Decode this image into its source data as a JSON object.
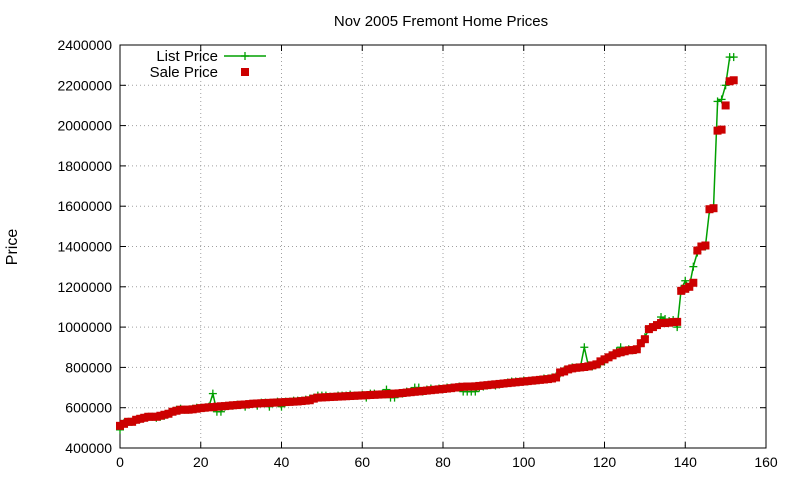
{
  "chart_data": {
    "type": "line",
    "title": "Nov 2005 Fremont Home Prices",
    "xlabel": "",
    "ylabel": "Price",
    "xlim": [
      0,
      160
    ],
    "ylim": [
      400000,
      2400000
    ],
    "xticks": [
      "0",
      "20",
      "40",
      "60",
      "80",
      "100",
      "120",
      "140",
      "160"
    ],
    "yticks": [
      "400000",
      "600000",
      "800000",
      "1000000",
      "1200000",
      "1400000",
      "1600000",
      "1800000",
      "2000000",
      "2200000",
      "2400000"
    ],
    "grid": true,
    "legend_position": "top-left",
    "colors": {
      "list": "#00a000",
      "sale": "#cc0000"
    },
    "series": [
      {
        "name": "List Price",
        "style": "line-plus",
        "x": [
          0,
          1,
          2,
          3,
          4,
          5,
          6,
          7,
          8,
          9,
          10,
          11,
          12,
          13,
          14,
          15,
          16,
          17,
          18,
          19,
          20,
          21,
          22,
          23,
          24,
          25,
          26,
          27,
          28,
          29,
          30,
          31,
          32,
          33,
          34,
          35,
          36,
          37,
          38,
          39,
          40,
          41,
          42,
          43,
          44,
          45,
          46,
          47,
          48,
          49,
          50,
          51,
          52,
          53,
          54,
          55,
          56,
          57,
          58,
          59,
          60,
          61,
          62,
          63,
          64,
          65,
          66,
          67,
          68,
          69,
          70,
          71,
          72,
          73,
          74,
          75,
          76,
          77,
          78,
          79,
          80,
          81,
          82,
          83,
          84,
          85,
          86,
          87,
          88,
          89,
          90,
          91,
          92,
          93,
          94,
          95,
          96,
          97,
          98,
          99,
          100,
          101,
          102,
          103,
          104,
          105,
          106,
          107,
          108,
          109,
          110,
          111,
          112,
          113,
          114,
          115,
          116,
          117,
          118,
          119,
          120,
          121,
          122,
          123,
          124,
          125,
          126,
          127,
          128,
          129,
          130,
          131,
          132,
          133,
          134,
          135,
          136,
          137,
          138,
          139,
          140,
          141,
          142,
          143,
          144,
          145,
          146,
          147,
          148,
          149,
          150,
          151,
          152
        ],
        "values": [
          490000,
          525000,
          530000,
          530000,
          540000,
          545000,
          550000,
          555000,
          555000,
          550000,
          555000,
          560000,
          570000,
          580000,
          590000,
          595000,
          590000,
          590000,
          595000,
          600000,
          600000,
          600000,
          605000,
          670000,
          580000,
          580000,
          605000,
          610000,
          610000,
          615000,
          615000,
          605000,
          615000,
          620000,
          610000,
          625000,
          625000,
          605000,
          625000,
          630000,
          605000,
          630000,
          630000,
          635000,
          635000,
          635000,
          640000,
          645000,
          650000,
          660000,
          660000,
          660000,
          655000,
          655000,
          660000,
          660000,
          660000,
          665000,
          660000,
          660000,
          665000,
          650000,
          670000,
          670000,
          665000,
          670000,
          690000,
          650000,
          650000,
          670000,
          670000,
          680000,
          680000,
          700000,
          700000,
          680000,
          690000,
          695000,
          690000,
          695000,
          695000,
          700000,
          700000,
          700000,
          705000,
          680000,
          680000,
          680000,
          680000,
          700000,
          705000,
          710000,
          715000,
          710000,
          715000,
          720000,
          725000,
          730000,
          730000,
          730000,
          735000,
          730000,
          735000,
          735000,
          740000,
          745000,
          745000,
          750000,
          755000,
          770000,
          785000,
          790000,
          800000,
          800000,
          800000,
          900000,
          810000,
          805000,
          815000,
          820000,
          830000,
          850000,
          860000,
          880000,
          900000,
          880000,
          890000,
          885000,
          890000,
          920000,
          950000,
          990000,
          1000000,
          1010000,
          1050000,
          1040000,
          1030000,
          1035000,
          1000000,
          1190000,
          1230000,
          1200000,
          1300000,
          1370000,
          1400000,
          1400000,
          1580000,
          1590000,
          2120000,
          2130000,
          2200000,
          2340000,
          2340000
        ]
      },
      {
        "name": "Sale Price",
        "style": "square-marker",
        "x": [
          0,
          1,
          2,
          3,
          4,
          5,
          6,
          7,
          8,
          9,
          10,
          11,
          12,
          13,
          14,
          15,
          16,
          17,
          18,
          19,
          20,
          21,
          22,
          23,
          24,
          25,
          26,
          27,
          28,
          29,
          30,
          31,
          32,
          33,
          34,
          35,
          36,
          37,
          38,
          39,
          40,
          41,
          42,
          43,
          44,
          45,
          46,
          47,
          48,
          49,
          50,
          51,
          52,
          53,
          54,
          55,
          56,
          57,
          58,
          59,
          60,
          61,
          62,
          63,
          64,
          65,
          66,
          67,
          68,
          69,
          70,
          71,
          72,
          73,
          74,
          75,
          76,
          77,
          78,
          79,
          80,
          81,
          82,
          83,
          84,
          85,
          86,
          87,
          88,
          89,
          90,
          91,
          92,
          93,
          94,
          95,
          96,
          97,
          98,
          99,
          100,
          101,
          102,
          103,
          104,
          105,
          106,
          107,
          108,
          109,
          110,
          111,
          112,
          113,
          114,
          115,
          116,
          117,
          118,
          119,
          120,
          121,
          122,
          123,
          124,
          125,
          126,
          127,
          128,
          129,
          130,
          131,
          132,
          133,
          134,
          135,
          136,
          137,
          138,
          139,
          140,
          141,
          142,
          143,
          144,
          145,
          146,
          147,
          148,
          149,
          150,
          151,
          152
        ],
        "values": [
          510000,
          520000,
          530000,
          530000,
          540000,
          545000,
          550000,
          555000,
          555000,
          555000,
          560000,
          565000,
          570000,
          580000,
          585000,
          590000,
          590000,
          590000,
          592000,
          595000,
          598000,
          600000,
          602000,
          603000,
          605000,
          607000,
          608000,
          610000,
          612000,
          613000,
          615000,
          616000,
          618000,
          620000,
          621000,
          622000,
          623000,
          624000,
          625000,
          626000,
          627000,
          628000,
          629000,
          630000,
          631000,
          633000,
          635000,
          637000,
          645000,
          650000,
          651000,
          652000,
          653000,
          654000,
          655000,
          656000,
          657000,
          658000,
          659000,
          660000,
          661000,
          662000,
          663000,
          664000,
          665000,
          666000,
          667000,
          668000,
          670000,
          671000,
          673000,
          675000,
          677000,
          679000,
          681000,
          683000,
          685000,
          687000,
          689000,
          691000,
          693000,
          695000,
          697000,
          700000,
          702000,
          704000,
          705000,
          705000,
          706000,
          708000,
          710000,
          712000,
          714000,
          716000,
          718000,
          720000,
          722000,
          724000,
          726000,
          728000,
          730000,
          732000,
          734000,
          736000,
          738000,
          740000,
          742000,
          745000,
          750000,
          775000,
          780000,
          790000,
          795000,
          798000,
          800000,
          802000,
          805000,
          810000,
          815000,
          830000,
          840000,
          850000,
          860000,
          870000,
          875000,
          880000,
          885000,
          886000,
          890000,
          920000,
          940000,
          990000,
          1000000,
          1010000,
          1020000,
          1020000,
          1022000,
          1025000,
          1026000,
          1180000,
          1190000,
          1200000,
          1220000,
          1380000,
          1400000,
          1405000,
          1585000,
          1590000,
          1975000,
          1980000,
          2100000,
          2220000,
          2225000
        ]
      }
    ]
  }
}
